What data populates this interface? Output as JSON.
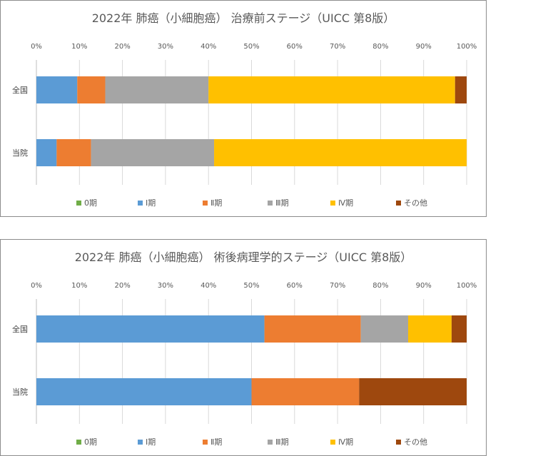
{
  "colors": {
    "stage0": "#70ad47",
    "stage1": "#5b9bd5",
    "stage2": "#ed7d31",
    "stage3": "#a5a5a5",
    "stage4": "#ffc000",
    "other": "#9e480e"
  },
  "chart_data": [
    {
      "type": "bar",
      "orientation": "horizontal",
      "stacked": "percent",
      "title": "2022年  肺癌（小細胞癌）  治療前ステージ（UICC 第8版）",
      "xlim": [
        0,
        100
      ],
      "xticks": [
        "0%",
        "10%",
        "20%",
        "30%",
        "40%",
        "50%",
        "60%",
        "70%",
        "80%",
        "90%",
        "100%"
      ],
      "categories": [
        "全国",
        "当院"
      ],
      "grid": true,
      "legend_position": "bottom",
      "series": [
        {
          "name": "0期",
          "values": [
            0,
            0
          ]
        },
        {
          "name": "Ⅰ期",
          "values": [
            9.5,
            4.7
          ]
        },
        {
          "name": "Ⅱ期",
          "values": [
            6.5,
            8.0
          ]
        },
        {
          "name": "Ⅲ期",
          "values": [
            24.0,
            28.6
          ]
        },
        {
          "name": "Ⅳ期",
          "values": [
            57.3,
            58.7
          ]
        },
        {
          "name": "その他",
          "values": [
            2.7,
            0
          ]
        }
      ]
    },
    {
      "type": "bar",
      "orientation": "horizontal",
      "stacked": "percent",
      "title": "2022年  肺癌（小細胞癌）  術後病理学的ステージ（UICC 第8版）",
      "xlim": [
        0,
        100
      ],
      "xticks": [
        "0%",
        "10%",
        "20%",
        "30%",
        "40%",
        "50%",
        "60%",
        "70%",
        "80%",
        "90%",
        "100%"
      ],
      "categories": [
        "全国",
        "当院"
      ],
      "grid": true,
      "legend_position": "bottom",
      "series": [
        {
          "name": "0期",
          "values": [
            0,
            0
          ]
        },
        {
          "name": "Ⅰ期",
          "values": [
            53.0,
            50.0
          ]
        },
        {
          "name": "Ⅱ期",
          "values": [
            22.4,
            25.0
          ]
        },
        {
          "name": "Ⅲ期",
          "values": [
            11.0,
            0
          ]
        },
        {
          "name": "Ⅳ期",
          "values": [
            10.1,
            0
          ]
        },
        {
          "name": "その他",
          "values": [
            3.5,
            25.0
          ]
        }
      ]
    }
  ]
}
